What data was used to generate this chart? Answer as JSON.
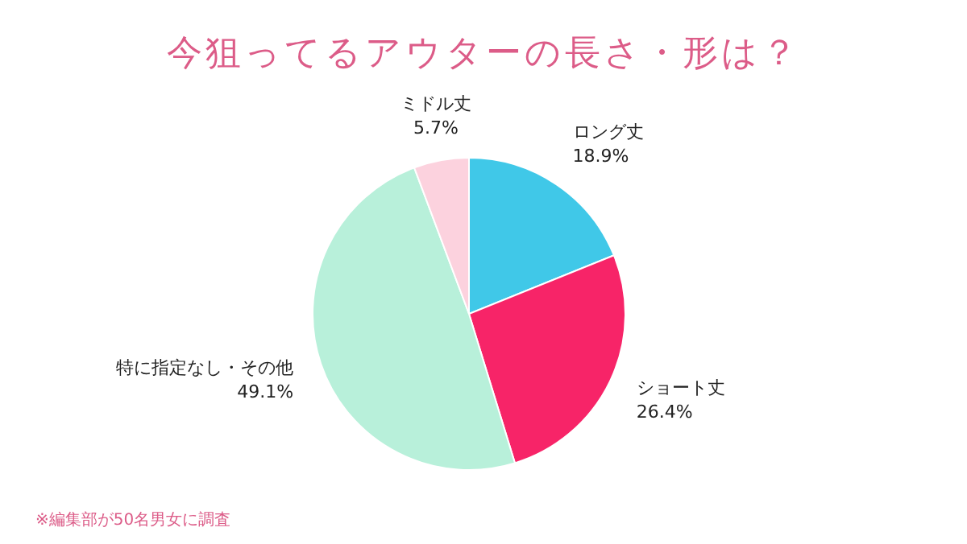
{
  "chart_data": {
    "type": "pie",
    "title": "今狙ってるアウターの長さ・形は？",
    "categories": [
      "ロング丈",
      "ショート丈",
      "特に指定なし・その他",
      "ミドル丈"
    ],
    "values": [
      18.9,
      26.4,
      49.1,
      5.7
    ],
    "value_labels": [
      "18.9%",
      "26.4%",
      "49.1%",
      "5.7%"
    ],
    "colors": [
      "#40c8e8",
      "#f72468",
      "#b8f0da",
      "#fcd2de"
    ],
    "annotations": [
      "※編集部が50名男女に調査"
    ]
  }
}
